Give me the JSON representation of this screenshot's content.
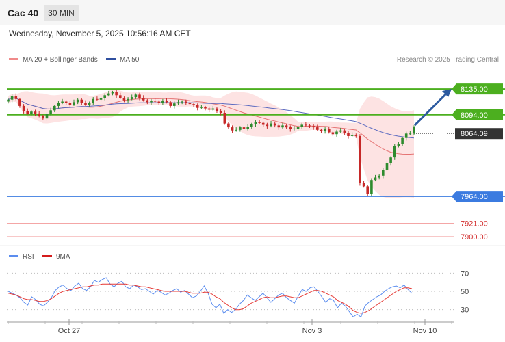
{
  "header": {
    "instrument": "Cac 40",
    "interval": "30 MIN",
    "timestamp": "Wednesday, November 5, 2025 10:56:16 AM CET"
  },
  "legend": {
    "ma20_bb": "MA 20 + Bollinger Bands",
    "ma50": "MA 50",
    "credit": "Research © 2025 Trading Central",
    "rsi": "RSI",
    "rsi_ma": "9MA"
  },
  "colors": {
    "candle_up": "#2e8b2e",
    "candle_down": "#c62828",
    "bollinger_fill": "#fde3e3",
    "ma20": "#e57373",
    "ma50": "#5c6bc0",
    "pivot_green": "#4caf1f",
    "support_blue": "#3b7be0",
    "support_red": "#f4a6a6",
    "current_price": "#333333",
    "rsi_line": "#5b8def",
    "rsi_ma_line": "#e53935"
  },
  "chart_data": [
    {
      "type": "candlestick",
      "title": "Cac 40",
      "interval": "30 MIN",
      "x_labels": [
        "Oct 27",
        "Nov 3",
        "Nov 10"
      ],
      "ylim": [
        7890,
        8170
      ],
      "close_series": [
        8118,
        8124,
        8119,
        8108,
        8100,
        8096,
        8099,
        8096,
        8092,
        8088,
        8095,
        8101,
        8108,
        8113,
        8115,
        8113,
        8110,
        8114,
        8118,
        8113,
        8110,
        8113,
        8119,
        8118,
        8121,
        8125,
        8128,
        8130,
        8125,
        8121,
        8117,
        8119,
        8122,
        8126,
        8121,
        8117,
        8114,
        8116,
        8115,
        8113,
        8116,
        8114,
        8108,
        8112,
        8114,
        8115,
        8113,
        8111,
        8109,
        8105,
        8106,
        8104,
        8102,
        8104,
        8100,
        8097,
        8080,
        8074,
        8069,
        8070,
        8074,
        8071,
        8075,
        8079,
        8082,
        8081,
        8078,
        8076,
        8080,
        8077,
        8074,
        8077,
        8074,
        8071,
        8072,
        8075,
        8078,
        8077,
        8076,
        8074,
        8070,
        8068,
        8071,
        8066,
        8063,
        8067,
        8069,
        8065,
        8060,
        8062,
        8060,
        7985,
        7980,
        7968,
        7990,
        7994,
        7997,
        8006,
        8017,
        8026,
        8044,
        8047,
        8057,
        8064,
        8064,
        8075
      ],
      "hlines": [
        {
          "label": "8135.00",
          "value": 8135,
          "style": "pivot"
        },
        {
          "label": "8094.00",
          "value": 8094,
          "style": "pivot"
        },
        {
          "label": "8064.09",
          "value": 8064.09,
          "style": "current"
        },
        {
          "label": "7964.00",
          "value": 7964,
          "style": "support"
        },
        {
          "label": "7921.00",
          "value": 7921,
          "style": "support-minor"
        },
        {
          "label": "7900.00",
          "value": 7900,
          "style": "support-minor"
        }
      ],
      "indicators": [
        "MA 20 + Bollinger Bands",
        "MA 50"
      ]
    },
    {
      "type": "line",
      "title": "RSI",
      "ylim": [
        20,
        80
      ],
      "y_ticks": [
        70,
        50,
        30
      ],
      "series": [
        {
          "name": "RSI",
          "values": [
            50,
            48,
            46,
            43,
            38,
            35,
            44,
            41,
            36,
            34,
            38,
            43,
            51,
            55,
            57,
            53,
            51,
            56,
            59,
            53,
            51,
            55,
            62,
            60,
            63,
            65,
            58,
            55,
            59,
            61,
            55,
            53,
            57,
            55,
            52,
            53,
            50,
            47,
            51,
            49,
            46,
            48,
            51,
            53,
            49,
            51,
            47,
            43,
            45,
            50,
            56,
            48,
            36,
            32,
            36,
            26,
            30,
            27,
            30,
            36,
            40,
            46,
            43,
            40,
            44,
            48,
            43,
            38,
            42,
            46,
            48,
            43,
            40,
            37,
            45,
            52,
            50,
            54,
            55,
            50,
            44,
            38,
            42,
            40,
            32,
            37,
            34,
            28,
            22,
            25,
            22,
            34,
            38,
            41,
            44,
            46,
            50,
            53,
            55,
            56,
            54,
            57,
            52,
            48
          ]
        },
        {
          "name": "9MA",
          "values": [
            48,
            47,
            46,
            44,
            42,
            41,
            41,
            40,
            39,
            39,
            40,
            42,
            45,
            48,
            50,
            51,
            52,
            53,
            54,
            55,
            55,
            56,
            57,
            57,
            58,
            58,
            58,
            58,
            58,
            58,
            58,
            57,
            57,
            56,
            55,
            55,
            54,
            53,
            52,
            51,
            50,
            50,
            50,
            50,
            50,
            50,
            49,
            48,
            48,
            48,
            49,
            49,
            47,
            44,
            42,
            38,
            35,
            32,
            30,
            30,
            31,
            34,
            37,
            39,
            41,
            43,
            44,
            43,
            43,
            44,
            45,
            45,
            44,
            43,
            43,
            45,
            47,
            49,
            51,
            51,
            50,
            48,
            46,
            44,
            40,
            38,
            36,
            33,
            29,
            27,
            26,
            27,
            29,
            32,
            35,
            38,
            41,
            44,
            47,
            50,
            52,
            54,
            54,
            53
          ]
        }
      ]
    }
  ]
}
